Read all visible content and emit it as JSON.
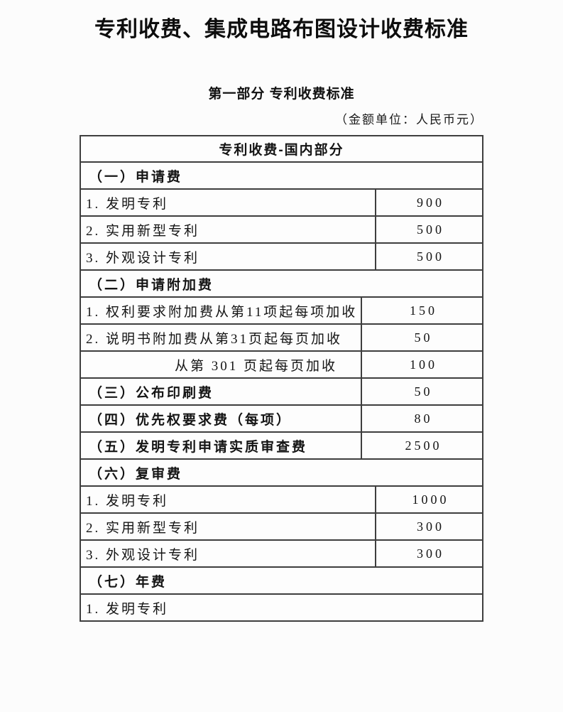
{
  "page": {
    "title": "专利收费、集成电路布图设计收费标准",
    "section_heading": "第一部分 专利收费标准",
    "unit_note": "（金额单位：人民币元）"
  },
  "table": {
    "header": "专利收费-国内部分",
    "rows": [
      {
        "type": "section",
        "label": "（一）申请费"
      },
      {
        "type": "item",
        "label": "1. 发明专利",
        "value": "900",
        "split": "wide"
      },
      {
        "type": "item",
        "label": "2. 实用新型专利",
        "value": "500",
        "split": "wide"
      },
      {
        "type": "item",
        "label": "3. 外观设计专利",
        "value": "500",
        "split": "wide"
      },
      {
        "type": "section",
        "label": "（二）申请附加费"
      },
      {
        "type": "item",
        "label": "1. 权利要求附加费从第11项起每项加收",
        "value": "150",
        "split": "narrow"
      },
      {
        "type": "item",
        "label": "2. 说明书附加费从第31页起每页加收",
        "value": "50",
        "split": "narrow"
      },
      {
        "type": "item-indent",
        "label": "从第 301 页起每页加收",
        "value": "100",
        "split": "narrow"
      },
      {
        "type": "section-value",
        "label": "（三）公布印刷费",
        "value": "50",
        "split": "narrow"
      },
      {
        "type": "section-value",
        "label": "（四）优先权要求费（每项）",
        "value": "80",
        "split": "narrow"
      },
      {
        "type": "section-value",
        "label": "（五）发明专利申请实质审查费",
        "value": "2500",
        "split": "narrow"
      },
      {
        "type": "section",
        "label": "（六）复审费"
      },
      {
        "type": "item",
        "label": "1. 发明专利",
        "value": "1000",
        "split": "wide"
      },
      {
        "type": "item",
        "label": "2. 实用新型专利",
        "value": "300",
        "split": "wide"
      },
      {
        "type": "item",
        "label": "3. 外观设计专利",
        "value": "300",
        "split": "wide"
      },
      {
        "type": "section",
        "label": "（七）年费"
      },
      {
        "type": "item",
        "label": "1. 发明专利"
      }
    ]
  },
  "colors": {
    "border": "#3e3e3e",
    "text": "#141414",
    "background": "#fcfcfc"
  }
}
